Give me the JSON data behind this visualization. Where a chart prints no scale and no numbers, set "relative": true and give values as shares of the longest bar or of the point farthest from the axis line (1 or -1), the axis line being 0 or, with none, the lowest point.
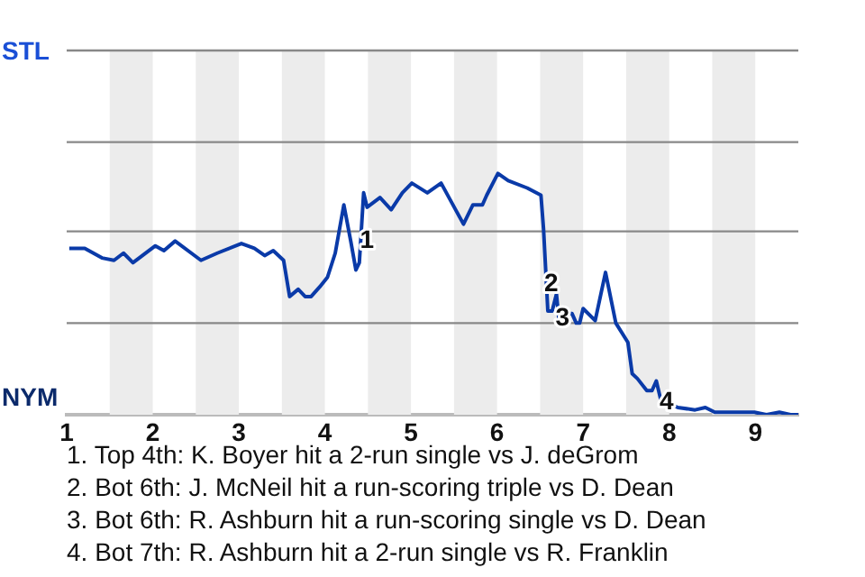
{
  "chart_data": {
    "type": "line",
    "relative": true,
    "x": [
      1.03,
      1.21,
      1.41,
      1.55,
      1.66,
      1.77,
      2.03,
      2.13,
      2.26,
      2.56,
      2.75,
      3.03,
      3.18,
      3.3,
      3.4,
      3.52,
      3.59,
      3.69,
      3.77,
      3.84,
      3.94,
      4.03,
      4.12,
      4.22,
      4.3,
      4.36,
      4.4,
      4.45,
      4.49,
      4.64,
      4.77,
      4.9,
      5.01,
      5.19,
      5.35,
      5.61,
      5.72,
      5.83,
      5.88,
      6.01,
      6.13,
      6.35,
      6.51,
      6.54,
      6.59,
      6.64,
      6.69,
      6.72,
      6.77,
      6.82,
      6.87,
      6.92,
      6.96,
      7.0,
      7.14,
      7.26,
      7.38,
      7.52,
      7.57,
      7.63,
      7.74,
      7.8,
      7.85,
      7.91,
      7.98,
      8.1,
      8.3,
      8.42,
      8.53,
      8.99,
      9.13,
      9.28,
      9.41,
      9.5
    ],
    "series": [
      {
        "color": "#0a3aa8",
        "values": [
          0.69,
          0.69,
          0.65,
          0.64,
          0.67,
          0.63,
          0.7,
          0.68,
          0.72,
          0.64,
          0.67,
          0.71,
          0.69,
          0.66,
          0.68,
          0.64,
          0.49,
          0.52,
          0.49,
          0.49,
          0.53,
          0.57,
          0.67,
          0.87,
          0.72,
          0.6,
          0.63,
          0.92,
          0.86,
          0.9,
          0.85,
          0.92,
          0.96,
          0.92,
          0.96,
          0.79,
          0.87,
          0.87,
          0.91,
          1,
          0.97,
          0.94,
          0.91,
          0.77,
          0.43,
          0.43,
          0.5,
          0.39,
          0.39,
          0.42,
          0.42,
          0.38,
          0.38,
          0.44,
          0.39,
          0.59,
          0.38,
          0.3,
          0.17,
          0.15,
          0.1,
          0.1,
          0.14,
          0.05,
          0.05,
          0.03,
          0.02,
          0.03,
          0.01,
          0.01,
          0,
          0.01,
          0,
          0
        ]
      }
    ],
    "xlim": [
      1,
      9.5
    ],
    "xticks": [
      1,
      2,
      3,
      4,
      5,
      6,
      7,
      8,
      9
    ],
    "ref_lines": [
      {
        "axis": "y",
        "value": 0.38,
        "color": "#888888"
      },
      {
        "axis": "y",
        "value": 0.76,
        "color": "#888888"
      },
      {
        "axis": "y",
        "value": 1.13,
        "color": "#888888"
      },
      {
        "axis": "y",
        "value": 1.51,
        "color": "#888888"
      }
    ],
    "marker": "none",
    "bands": [
      {
        "axis": "x",
        "from": 1.5,
        "to": 2,
        "color": "#ececec"
      },
      {
        "axis": "x",
        "from": 2.5,
        "to": 3,
        "color": "#ececec"
      },
      {
        "axis": "x",
        "from": 3.5,
        "to": 4,
        "color": "#ececec"
      },
      {
        "axis": "x",
        "from": 4.5,
        "to": 5,
        "color": "#ececec"
      },
      {
        "axis": "x",
        "from": 5.5,
        "to": 6,
        "color": "#ececec"
      },
      {
        "axis": "x",
        "from": 6.5,
        "to": 7,
        "color": "#ececec"
      },
      {
        "axis": "x",
        "from": 7.5,
        "to": 8,
        "color": "#ececec"
      },
      {
        "axis": "x",
        "from": 8.5,
        "to": 9,
        "color": "#ececec"
      }
    ],
    "annotations": [
      "STL",
      "NYM",
      {
        "text": "1",
        "x": 4.49,
        "y": 0.72
      },
      {
        "text": "2",
        "x": 6.63,
        "y": 0.54
      },
      {
        "text": "3",
        "x": 6.76,
        "y": 0.4
      },
      {
        "text": "4",
        "x": 7.97,
        "y": 0.05
      },
      "1. Top 4th: K. Boyer hit a 2-run single vs J. deGrom",
      "2. Bot 6th: J. McNeil hit a run-scoring triple vs D. Dean",
      "3. Bot 6th: R. Ashburn hit a run-scoring single vs D. Dean",
      "4. Bot 7th: R. Ashburn hit a 2-run single vs R. Franklin"
    ]
  }
}
